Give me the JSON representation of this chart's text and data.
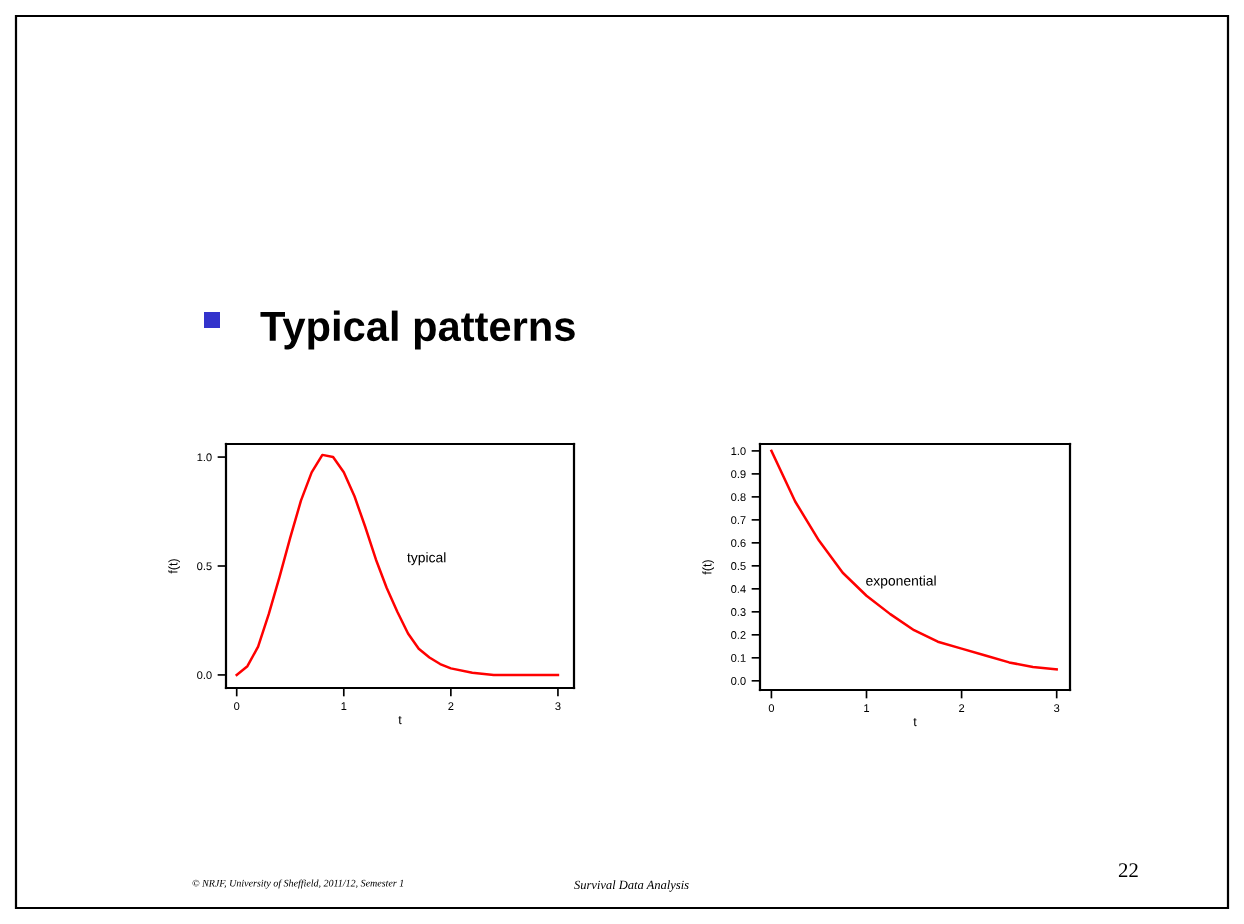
{
  "chart_data": [
    {
      "type": "line",
      "title": "Typical patterns",
      "xlabel": "t",
      "ylabel": "f(t)",
      "x": [
        0,
        0.1,
        0.2,
        0.3,
        0.4,
        0.5,
        0.6,
        0.7,
        0.8,
        0.9,
        1.0,
        1.1,
        1.2,
        1.3,
        1.4,
        1.5,
        1.6,
        1.7,
        1.8,
        1.9,
        2.0,
        2.2,
        2.4,
        2.6,
        2.8,
        3.0
      ],
      "series": [
        {
          "color": "#ff0000",
          "values": [
            0,
            0.04,
            0.13,
            0.28,
            0.45,
            0.63,
            0.8,
            0.93,
            1.01,
            1.0,
            0.93,
            0.82,
            0.68,
            0.53,
            0.4,
            0.29,
            0.19,
            0.12,
            0.08,
            0.05,
            0.03,
            0.01,
            0,
            0,
            0,
            0
          ]
        }
      ],
      "xlim": [
        -0.1,
        3.15
      ],
      "ylim": [
        -0.06,
        1.06
      ],
      "xticks": [
        0,
        1,
        2,
        3
      ],
      "yticks": [
        {
          "value": 0,
          "label": "0.0"
        },
        {
          "value": 0.5,
          "label": "0.5"
        },
        {
          "value": 1,
          "label": "1.0"
        }
      ],
      "annotations": [
        "typical"
      ],
      "grid": false,
      "legend": false
    },
    {
      "type": "line",
      "xlabel": "t",
      "ylabel": "f(t)",
      "x": [
        0,
        0.25,
        0.5,
        0.75,
        1.0,
        1.25,
        1.5,
        1.75,
        2.0,
        2.25,
        2.5,
        2.75,
        3.0
      ],
      "series": [
        {
          "color": "#ff0000",
          "values": [
            1.0,
            0.78,
            0.61,
            0.47,
            0.37,
            0.29,
            0.22,
            0.17,
            0.14,
            0.11,
            0.08,
            0.06,
            0.05
          ]
        }
      ],
      "xlim": [
        -0.12,
        3.14
      ],
      "ylim": [
        -0.04,
        1.03
      ],
      "xticks": [
        0,
        1,
        2,
        3
      ],
      "yticks": [
        {
          "value": 0,
          "label": "0.0"
        },
        {
          "value": 0.1,
          "label": "0.1"
        },
        {
          "value": 0.2,
          "label": "0.2"
        },
        {
          "value": 0.3,
          "label": "0.3"
        },
        {
          "value": 0.4,
          "label": "0.4"
        },
        {
          "value": 0.5,
          "label": "0.5"
        },
        {
          "value": 0.6,
          "label": "0.6"
        },
        {
          "value": 0.7,
          "label": "0.7"
        },
        {
          "value": 0.8,
          "label": "0.8"
        },
        {
          "value": 0.9,
          "label": "0.9"
        },
        {
          "value": 1,
          "label": "1.0"
        }
      ],
      "annotations": [
        {
          "text": "exponential",
          "x": 0.99,
          "y": 0.43
        },
        "© NRJF, University of Sheffield, 2011/12, Semester 1",
        "Survival Data Analysis",
        "22"
      ],
      "grid": false,
      "legend": false
    }
  ]
}
